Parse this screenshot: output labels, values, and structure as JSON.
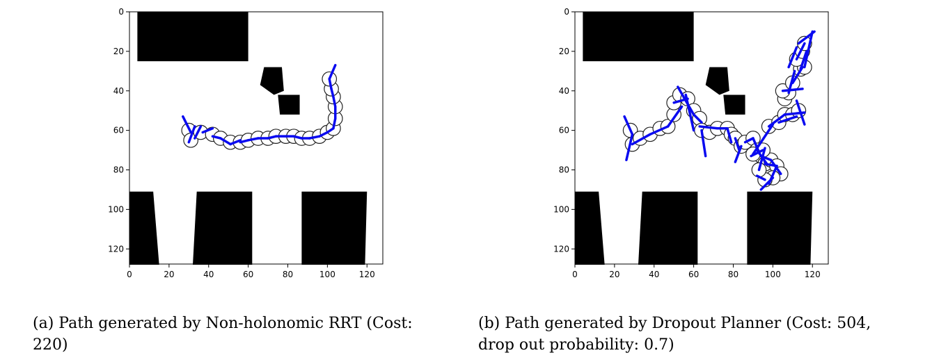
{
  "panels": [
    {
      "id": "a",
      "caption": "(a) Path generated by Non-holonomic RRT (Cost:\n220)",
      "chart_data": {
        "type": "scatter",
        "title": "",
        "xlabel": "",
        "ylabel": "",
        "xlim": [
          0,
          128
        ],
        "ylim": [
          128,
          0
        ],
        "xticks": [
          0,
          20,
          40,
          60,
          80,
          100,
          120
        ],
        "yticks": [
          0,
          20,
          40,
          60,
          80,
          100,
          120
        ],
        "grid": false,
        "colors": {
          "path": "#0a0af0",
          "obstacle": "#000000",
          "circle_edge": "#222222"
        },
        "obstacles": [
          [
            [
              4,
              0
            ],
            [
              60,
              0
            ],
            [
              60,
              25
            ],
            [
              4,
              25
            ]
          ],
          [
            [
              68,
              28
            ],
            [
              77,
              28
            ],
            [
              78,
              40
            ],
            [
              73,
              42
            ],
            [
              66,
              37
            ]
          ],
          [
            [
              75,
              42
            ],
            [
              86,
              42
            ],
            [
              86,
              52
            ],
            [
              76,
              52
            ]
          ],
          [
            [
              0,
              91
            ],
            [
              12,
              91
            ],
            [
              15,
              128
            ],
            [
              0,
              128
            ]
          ],
          [
            [
              34,
              91
            ],
            [
              62,
              91
            ],
            [
              62,
              128
            ],
            [
              32,
              128
            ]
          ],
          [
            [
              87,
              91
            ],
            [
              120,
              91
            ],
            [
              119,
              128
            ],
            [
              87,
              128
            ]
          ]
        ],
        "series": [
          {
            "circles": [
              [
                30,
                60
              ],
              [
                31,
                65
              ],
              [
                36,
                61
              ],
              [
                42,
                62
              ],
              [
                46,
                64
              ],
              [
                51,
                66
              ],
              [
                56,
                66
              ],
              [
                60,
                65
              ],
              [
                65,
                64
              ],
              [
                70,
                64
              ],
              [
                74,
                63
              ],
              [
                79,
                63
              ],
              [
                83,
                63
              ],
              [
                87,
                64
              ],
              [
                91,
                64
              ],
              [
                96,
                63
              ],
              [
                100,
                61
              ],
              [
                103,
                59
              ],
              [
                104,
                54
              ],
              [
                104,
                48
              ],
              [
                103,
                43
              ],
              [
                102,
                39
              ],
              [
                101,
                34
              ]
            ],
            "headings": [
              [
                27,
                53,
                31,
                61
              ],
              [
                33,
                58,
                30,
                66
              ],
              [
                33,
                64,
                36,
                58
              ],
              [
                37,
                61,
                42,
                59
              ],
              [
                42,
                63,
                46,
                64
              ],
              [
                46,
                64,
                51,
                67
              ],
              [
                51,
                67,
                56,
                65
              ],
              [
                56,
                66,
                60,
                65
              ],
              [
                60,
                65,
                65,
                64
              ],
              [
                65,
                64,
                70,
                64
              ],
              [
                70,
                64,
                74,
                63
              ],
              [
                74,
                63,
                79,
                63
              ],
              [
                79,
                63,
                83,
                63
              ],
              [
                83,
                63,
                87,
                64
              ],
              [
                87,
                64,
                91,
                64
              ],
              [
                91,
                64,
                96,
                63
              ],
              [
                96,
                63,
                100,
                61
              ],
              [
                100,
                61,
                103,
                59
              ],
              [
                103,
                59,
                104,
                54
              ],
              [
                104,
                54,
                104,
                48
              ],
              [
                104,
                48,
                103,
                43
              ],
              [
                103,
                43,
                102,
                39
              ],
              [
                102,
                39,
                101,
                34
              ],
              [
                101,
                34,
                104,
                27
              ]
            ]
          }
        ]
      }
    },
    {
      "id": "b",
      "caption": "(b) Path generated by Dropout Planner (Cost: 504,\ndrop out probability: 0.7)",
      "chart_data": {
        "type": "scatter",
        "title": "",
        "xlabel": "",
        "ylabel": "",
        "xlim": [
          0,
          128
        ],
        "ylim": [
          128,
          0
        ],
        "xticks": [
          0,
          20,
          40,
          60,
          80,
          100,
          120
        ],
        "yticks": [
          0,
          20,
          40,
          60,
          80,
          100,
          120
        ],
        "grid": false,
        "colors": {
          "path": "#0a0af0",
          "obstacle": "#000000",
          "circle_edge": "#222222"
        },
        "obstacles": [
          [
            [
              4,
              0
            ],
            [
              60,
              0
            ],
            [
              60,
              25
            ],
            [
              4,
              25
            ]
          ],
          [
            [
              68,
              28
            ],
            [
              77,
              28
            ],
            [
              78,
              40
            ],
            [
              73,
              42
            ],
            [
              66,
              37
            ]
          ],
          [
            [
              75,
              42
            ],
            [
              86,
              42
            ],
            [
              86,
              52
            ],
            [
              76,
              52
            ]
          ],
          [
            [
              0,
              91
            ],
            [
              12,
              91
            ],
            [
              15,
              128
            ],
            [
              0,
              128
            ]
          ],
          [
            [
              34,
              91
            ],
            [
              62,
              91
            ],
            [
              62,
              128
            ],
            [
              32,
              128
            ]
          ],
          [
            [
              87,
              91
            ],
            [
              120,
              91
            ],
            [
              119,
              128
            ],
            [
              87,
              128
            ]
          ]
        ],
        "series": [
          {
            "circles": [
              [
                28,
                60
              ],
              [
                29,
                67
              ],
              [
                33,
                64
              ],
              [
                38,
                62
              ],
              [
                43,
                59
              ],
              [
                47,
                58
              ],
              [
                50,
                52
              ],
              [
                50,
                46
              ],
              [
                53,
                42
              ],
              [
                57,
                44
              ],
              [
                60,
                50
              ],
              [
                63,
                54
              ],
              [
                64,
                60
              ],
              [
                68,
                61
              ],
              [
                72,
                59
              ],
              [
                77,
                59
              ],
              [
                79,
                62
              ],
              [
                81,
                64
              ],
              [
                84,
                68
              ],
              [
                86,
                66
              ],
              [
                90,
                64
              ],
              [
                92,
                70
              ],
              [
                94,
                73
              ],
              [
                96,
                77
              ],
              [
                99,
                75
              ],
              [
                102,
                78
              ],
              [
                104,
                82
              ],
              [
                100,
                84
              ],
              [
                96,
                85
              ],
              [
                93,
                80
              ],
              [
                95,
                70
              ],
              [
                90,
                72
              ],
              [
                98,
                58
              ],
              [
                103,
                56
              ],
              [
                106,
                52
              ],
              [
                110,
                52
              ],
              [
                113,
                50
              ],
              [
                106,
                44
              ],
              [
                108,
                41
              ],
              [
                105,
                40
              ],
              [
                110,
                36
              ],
              [
                114,
                29
              ],
              [
                116,
                28
              ],
              [
                112,
                24
              ],
              [
                115,
                20
              ],
              [
                116,
                16
              ]
            ],
            "headings": [
              [
                25,
                53,
                29,
                62
              ],
              [
                29,
                62,
                26,
                75
              ],
              [
                29,
                67,
                38,
                62
              ],
              [
                38,
                62,
                47,
                58
              ],
              [
                47,
                58,
                54,
                48
              ],
              [
                50,
                46,
                57,
                44
              ],
              [
                52,
                38,
                60,
                52
              ],
              [
                60,
                52,
                64,
                56
              ],
              [
                56,
                42,
                60,
                60
              ],
              [
                64,
                60,
                66,
                73
              ],
              [
                63,
                58,
                72,
                59
              ],
              [
                72,
                59,
                77,
                59
              ],
              [
                77,
                59,
                79,
                66
              ],
              [
                81,
                64,
                83,
                70
              ],
              [
                84,
                68,
                81,
                76
              ],
              [
                86,
                66,
                90,
                64
              ],
              [
                90,
                64,
                93,
                71
              ],
              [
                92,
                70,
                97,
                77
              ],
              [
                94,
                73,
                99,
                75
              ],
              [
                96,
                77,
                102,
                78
              ],
              [
                99,
                75,
                104,
                82
              ],
              [
                102,
                78,
                98,
                87
              ],
              [
                100,
                84,
                94,
                90
              ],
              [
                96,
                85,
                92,
                83
              ],
              [
                93,
                80,
                96,
                69
              ],
              [
                95,
                70,
                89,
                73
              ],
              [
                90,
                72,
                100,
                57
              ],
              [
                98,
                58,
                106,
                52
              ],
              [
                103,
                56,
                112,
                53
              ],
              [
                106,
                52,
                116,
                51
              ],
              [
                112,
                45,
                116,
                57
              ],
              [
                105,
                40,
                115,
                39
              ],
              [
                108,
                41,
                111,
                30
              ],
              [
                110,
                36,
                115,
                28
              ],
              [
                114,
                29,
                117,
                20
              ],
              [
                116,
                28,
                120,
                10
              ],
              [
                108,
                28,
                112,
                18
              ],
              [
                112,
                24,
                116,
                16
              ],
              [
                113,
                16,
                121,
                10
              ]
            ]
          }
        ]
      }
    }
  ]
}
